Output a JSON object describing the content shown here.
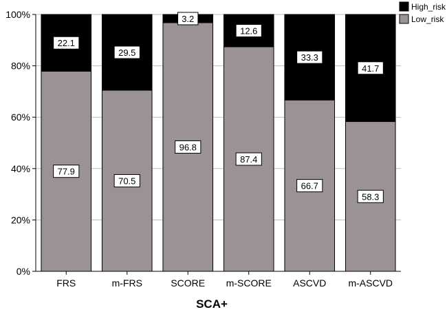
{
  "chart_data": {
    "type": "bar",
    "stacked": true,
    "categories": [
      "FRS",
      "m-FRS",
      "SCORE",
      "m-SCORE",
      "ASCVD",
      "m-ASCVD"
    ],
    "series": [
      {
        "name": "Low_risk",
        "values": [
          77.9,
          70.5,
          96.8,
          87.4,
          66.7,
          58.3
        ],
        "color": "#9b9393"
      },
      {
        "name": "High_risk",
        "values": [
          22.1,
          29.5,
          3.2,
          12.6,
          33.3,
          41.7
        ],
        "color": "#000000"
      }
    ],
    "xlabel": "SCA+",
    "ylabel": "",
    "ylim": [
      0,
      100
    ],
    "yticks": [
      "0%",
      "20%",
      "40%",
      "60%",
      "80%",
      "100%"
    ],
    "grid": true,
    "legend_position": "top-right"
  }
}
